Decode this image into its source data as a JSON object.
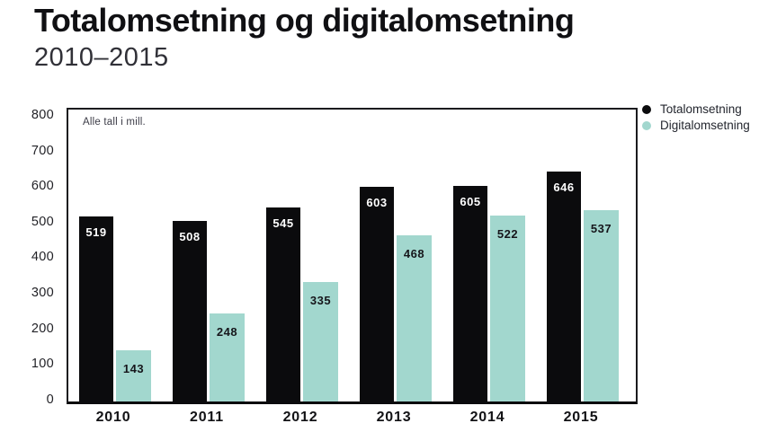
{
  "header": {
    "title": "Totalomsetning og digitalomsetning",
    "subtitle": "2010–2015"
  },
  "chart_data": {
    "type": "bar",
    "title": "Totalomsetning og digitalomsetning 2010–2015",
    "annotation": "Alle tall i mill.",
    "categories": [
      "2010",
      "2011",
      "2012",
      "2013",
      "2014",
      "2015"
    ],
    "series": [
      {
        "name": "Totalomsetning",
        "color": "#0b0b0d",
        "label_color": "#ffffff",
        "values": [
          519,
          508,
          545,
          603,
          605,
          646
        ]
      },
      {
        "name": "Digitalomsetning",
        "color": "#a2d7ce",
        "label_color": "#16161b",
        "values": [
          143,
          248,
          335,
          468,
          522,
          537
        ]
      }
    ],
    "y_ticks": [
      0,
      100,
      200,
      300,
      400,
      500,
      600,
      700,
      800
    ],
    "ylim": [
      0,
      820
    ],
    "xlabel": "",
    "ylabel": "",
    "grid": false,
    "legend_position": "top-right",
    "data_labels": true
  }
}
